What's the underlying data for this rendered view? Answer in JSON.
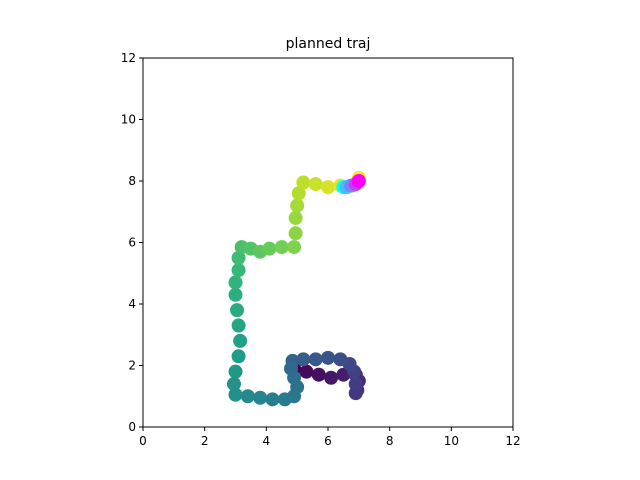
{
  "chart_data": {
    "type": "scatter",
    "title": "planned traj",
    "xlim": [
      0,
      12
    ],
    "ylim": [
      0,
      12
    ],
    "xticks": [
      0,
      2,
      4,
      6,
      8,
      10,
      12
    ],
    "yticks": [
      0,
      2,
      4,
      6,
      8,
      10,
      12
    ],
    "series": [
      {
        "colormap": "viridis",
        "x": [
          4.9,
          5.3,
          5.7,
          6.1,
          6.5,
          6.9,
          7.0,
          6.95,
          6.9,
          6.9,
          6.85,
          6.7,
          6.4,
          6.0,
          5.6,
          5.2,
          4.85,
          4.8,
          4.9,
          5.0,
          4.9,
          4.6,
          4.2,
          3.8,
          3.4,
          3.0,
          2.95,
          3.0,
          3.1,
          3.15,
          3.1,
          3.05,
          3.0,
          3.0,
          3.1,
          3.1,
          3.2,
          3.5,
          3.8,
          4.1,
          4.5,
          4.9,
          4.95,
          4.95,
          5.0,
          5.05,
          5.2,
          5.6,
          6.0,
          6.4,
          6.8,
          7.0
        ],
        "y": [
          1.9,
          1.8,
          1.7,
          1.6,
          1.7,
          1.7,
          1.5,
          1.2,
          1.1,
          1.4,
          1.8,
          2.05,
          2.2,
          2.25,
          2.2,
          2.2,
          2.15,
          1.9,
          1.6,
          1.3,
          1.0,
          0.9,
          0.9,
          0.95,
          1.0,
          1.05,
          1.4,
          1.8,
          2.3,
          2.8,
          3.3,
          3.8,
          4.3,
          4.7,
          5.1,
          5.5,
          5.85,
          5.8,
          5.7,
          5.8,
          5.85,
          5.85,
          6.3,
          6.8,
          7.2,
          7.6,
          7.95,
          7.9,
          7.8,
          7.85,
          7.85,
          8.1
        ]
      },
      {
        "colormap": "cool",
        "x": [
          6.5,
          6.6,
          6.75,
          6.9,
          7.0
        ],
        "y": [
          7.8,
          7.8,
          7.85,
          7.9,
          8.0
        ]
      }
    ]
  }
}
